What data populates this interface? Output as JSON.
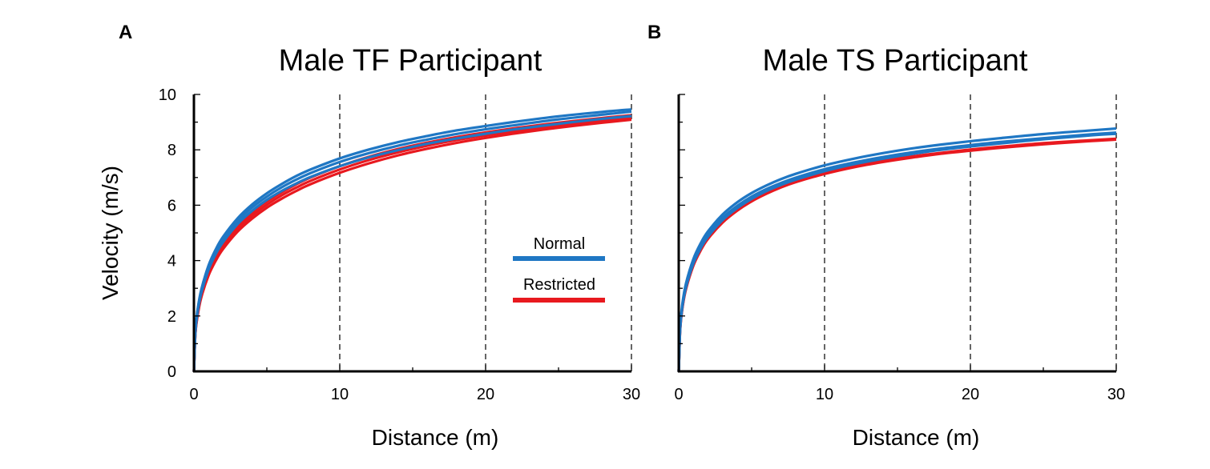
{
  "figure": {
    "ylabel": "Velocity (m/s)"
  },
  "legend": {
    "normal_label": "Normal",
    "restricted_label": "Restricted",
    "normal_color": "#1f77c4",
    "restricted_color": "#e8191f"
  },
  "chart_data": [
    {
      "type": "line",
      "panel_label": "A",
      "title": "Male TF Participant",
      "xlabel": "Distance (m)",
      "ylabel": "Velocity (m/s)",
      "xlim": [
        0,
        30
      ],
      "ylim": [
        0,
        10
      ],
      "xticks": [
        0,
        10,
        20,
        30
      ],
      "yticks": [
        0,
        2,
        4,
        6,
        8,
        10
      ],
      "vlines": [
        10,
        20,
        30
      ],
      "show_ytick_labels": true,
      "legend_position": "center-right",
      "x": [
        0,
        0.1,
        0.25,
        0.5,
        1,
        1.5,
        2,
        3,
        4,
        5,
        6,
        7,
        8,
        10,
        12,
        14,
        16,
        18,
        20,
        22,
        25,
        28,
        30
      ],
      "series": [
        {
          "name": "Normal",
          "group": "normal",
          "values": [
            0,
            1.42,
            2.13,
            2.82,
            3.67,
            4.24,
            4.67,
            5.32,
            5.8,
            6.19,
            6.51,
            6.78,
            7.02,
            7.41,
            7.73,
            7.99,
            8.22,
            8.41,
            8.58,
            8.74,
            8.94,
            9.12,
            9.22
          ]
        },
        {
          "name": "Normal",
          "group": "normal",
          "values": [
            0,
            1.45,
            2.18,
            2.88,
            3.75,
            4.33,
            4.77,
            5.43,
            5.92,
            6.31,
            6.64,
            6.92,
            7.16,
            7.56,
            7.88,
            8.15,
            8.37,
            8.57,
            8.74,
            8.89,
            9.1,
            9.27,
            9.38
          ]
        },
        {
          "name": "Normal",
          "group": "normal",
          "values": [
            0,
            1.48,
            2.22,
            2.94,
            3.82,
            4.41,
            4.86,
            5.53,
            6.03,
            6.43,
            6.76,
            7.05,
            7.29,
            7.69,
            8.01,
            8.28,
            8.5,
            8.7,
            8.86,
            9.01,
            9.21,
            9.37,
            9.46
          ]
        },
        {
          "name": "Restricted",
          "group": "restricted",
          "values": [
            0,
            1.35,
            2.0,
            2.66,
            3.46,
            4.0,
            4.42,
            5.05,
            5.52,
            5.91,
            6.23,
            6.51,
            6.76,
            7.17,
            7.51,
            7.8,
            8.04,
            8.25,
            8.43,
            8.59,
            8.8,
            8.98,
            9.09
          ]
        },
        {
          "name": "Restricted",
          "group": "restricted",
          "values": [
            0,
            1.37,
            2.04,
            2.71,
            3.53,
            4.08,
            4.51,
            5.15,
            5.63,
            6.02,
            6.35,
            6.63,
            6.88,
            7.29,
            7.63,
            7.91,
            8.15,
            8.35,
            8.52,
            8.67,
            8.87,
            9.04,
            9.14
          ]
        },
        {
          "name": "Restricted",
          "group": "restricted",
          "values": [
            0,
            1.4,
            2.08,
            2.76,
            3.6,
            4.16,
            4.6,
            5.25,
            5.74,
            6.13,
            6.46,
            6.75,
            7.0,
            7.41,
            7.75,
            8.03,
            8.26,
            8.46,
            8.63,
            8.78,
            8.98,
            9.15,
            9.25
          ]
        }
      ]
    },
    {
      "type": "line",
      "panel_label": "B",
      "title": "Male TS Participant",
      "xlabel": "Distance (m)",
      "ylabel": "",
      "xlim": [
        0,
        30
      ],
      "ylim": [
        0,
        10
      ],
      "xticks": [
        0,
        10,
        20,
        30
      ],
      "yticks": [
        0,
        2,
        4,
        6,
        8,
        10
      ],
      "vlines": [
        10,
        20,
        30
      ],
      "show_ytick_labels": false,
      "x": [
        0,
        0.1,
        0.25,
        0.5,
        1,
        1.5,
        2,
        3,
        4,
        5,
        6,
        7,
        8,
        10,
        12,
        14,
        16,
        18,
        20,
        22,
        25,
        28,
        30
      ],
      "series": [
        {
          "name": "Normal",
          "group": "normal",
          "values": [
            0,
            1.58,
            2.38,
            3.1,
            3.96,
            4.52,
            4.94,
            5.54,
            5.97,
            6.31,
            6.58,
            6.8,
            6.99,
            7.3,
            7.54,
            7.74,
            7.91,
            8.05,
            8.17,
            8.28,
            8.42,
            8.55,
            8.62
          ]
        },
        {
          "name": "Normal",
          "group": "normal",
          "values": [
            0,
            1.62,
            2.44,
            3.18,
            4.05,
            4.62,
            5.05,
            5.66,
            6.1,
            6.44,
            6.71,
            6.94,
            7.13,
            7.44,
            7.68,
            7.88,
            8.05,
            8.19,
            8.31,
            8.42,
            8.57,
            8.69,
            8.77
          ]
        },
        {
          "name": "Normal",
          "group": "normal",
          "values": [
            0,
            1.55,
            2.33,
            3.04,
            3.89,
            4.44,
            4.86,
            5.46,
            5.89,
            6.23,
            6.51,
            6.73,
            6.92,
            7.23,
            7.48,
            7.68,
            7.85,
            8.0,
            8.12,
            8.23,
            8.38,
            8.51,
            8.58
          ]
        },
        {
          "name": "Restricted",
          "group": "restricted",
          "values": [
            0,
            1.5,
            2.27,
            2.97,
            3.81,
            4.36,
            4.78,
            5.37,
            5.8,
            6.14,
            6.41,
            6.64,
            6.83,
            7.13,
            7.37,
            7.56,
            7.72,
            7.86,
            7.97,
            8.07,
            8.2,
            8.31,
            8.37
          ]
        },
        {
          "name": "Restricted",
          "group": "restricted",
          "values": [
            0,
            1.53,
            2.3,
            3.01,
            3.86,
            4.41,
            4.83,
            5.42,
            5.85,
            6.19,
            6.46,
            6.69,
            6.88,
            7.18,
            7.41,
            7.6,
            7.76,
            7.89,
            8.01,
            8.11,
            8.24,
            8.34,
            8.4
          ]
        }
      ]
    }
  ]
}
